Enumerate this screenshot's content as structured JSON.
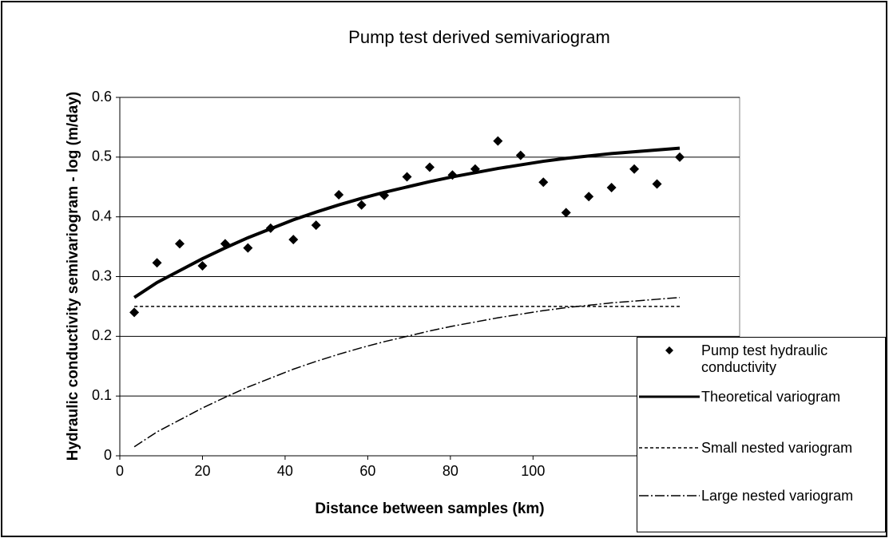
{
  "chart_data": {
    "type": "scatter",
    "title": "Pump test derived semivariogram",
    "xlabel": "Distance between samples (km)",
    "ylabel": "Hydraulic conductivity semivariogram - log (m/day)",
    "xlim": [
      0,
      150
    ],
    "xticks": [
      0,
      20,
      40,
      60,
      80,
      100
    ],
    "ylim": [
      0,
      0.6
    ],
    "yticks": [
      0,
      0.1,
      0.2,
      0.3,
      0.4,
      0.5,
      0.6
    ],
    "grid": true,
    "x": [
      3.5,
      9,
      14.5,
      20,
      25.5,
      31,
      36.5,
      42,
      47.5,
      53,
      58.5,
      64,
      69.5,
      75,
      80.5,
      86,
      91.5,
      97,
      102.5,
      108,
      113.5,
      119,
      124.5,
      130,
      135.5
    ],
    "series": [
      {
        "name": "Pump test hydraulic conductivity",
        "style": "marker",
        "color": "#000000",
        "values": [
          0.24,
          0.323,
          0.355,
          0.318,
          0.355,
          0.348,
          0.381,
          0.362,
          0.386,
          0.437,
          0.42,
          0.436,
          0.467,
          0.483,
          0.47,
          0.48,
          0.527,
          0.503,
          0.458,
          0.407,
          0.434,
          0.449,
          0.48,
          0.455,
          0.5
        ]
      },
      {
        "name": "Theoretical variogram",
        "style": "solid",
        "color": "#000000",
        "values": [
          0.265,
          0.29,
          0.31,
          0.33,
          0.348,
          0.365,
          0.38,
          0.395,
          0.408,
          0.42,
          0.431,
          0.441,
          0.45,
          0.459,
          0.467,
          0.474,
          0.481,
          0.487,
          0.493,
          0.498,
          0.502,
          0.506,
          0.509,
          0.512,
          0.515
        ]
      },
      {
        "name": "Small nested variogram",
        "style": "dashed",
        "color": "#000000",
        "values": [
          0.25,
          0.25,
          0.25,
          0.25,
          0.25,
          0.25,
          0.25,
          0.25,
          0.25,
          0.25,
          0.25,
          0.25,
          0.25,
          0.25,
          0.25,
          0.25,
          0.25,
          0.25,
          0.25,
          0.25,
          0.25,
          0.25,
          0.25,
          0.25,
          0.25
        ]
      },
      {
        "name": "Large nested variogram",
        "style": "dashdot",
        "color": "#000000",
        "values": [
          0.015,
          0.04,
          0.06,
          0.08,
          0.098,
          0.115,
          0.13,
          0.145,
          0.158,
          0.17,
          0.181,
          0.191,
          0.2,
          0.209,
          0.217,
          0.224,
          0.231,
          0.237,
          0.243,
          0.248,
          0.252,
          0.256,
          0.259,
          0.262,
          0.265
        ]
      }
    ]
  }
}
